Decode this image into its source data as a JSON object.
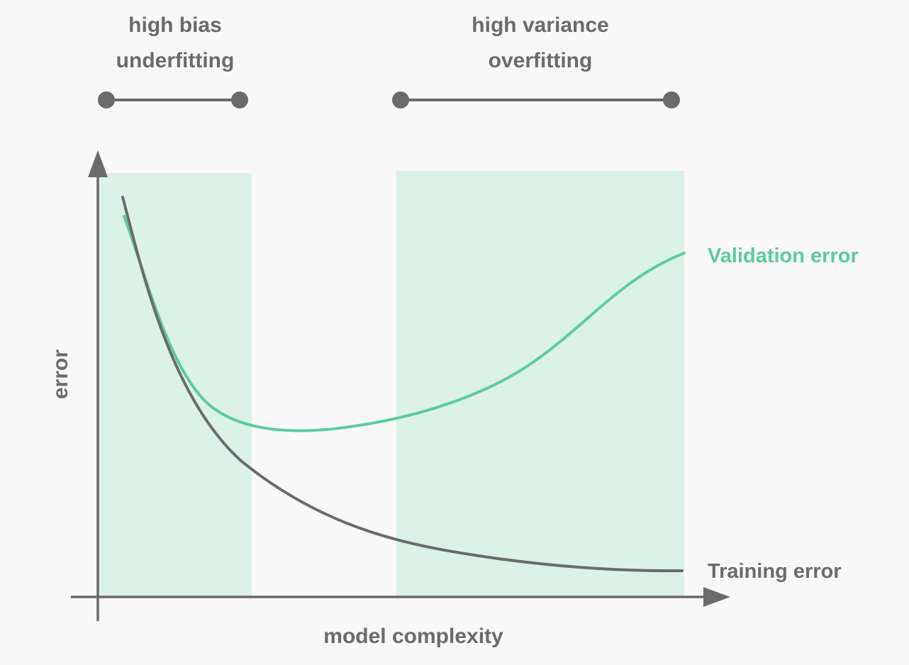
{
  "chart_data": {
    "type": "line",
    "xlabel": "model complexity",
    "ylabel": "error",
    "colors": {
      "background": "#f8f8f8",
      "axis": "#6b6b6b",
      "text": "#6b6b6b",
      "validation": "#5ccc9e",
      "training": "#6b6b6b",
      "region_fill": "#dcf1e8"
    },
    "regions": [
      {
        "label_line1": "high bias",
        "label_line2": "underfitting"
      },
      {
        "label_line1": "high variance",
        "label_line2": "overfitting"
      }
    ],
    "series": [
      {
        "name": "Validation error"
      },
      {
        "name": "Training error"
      }
    ]
  }
}
